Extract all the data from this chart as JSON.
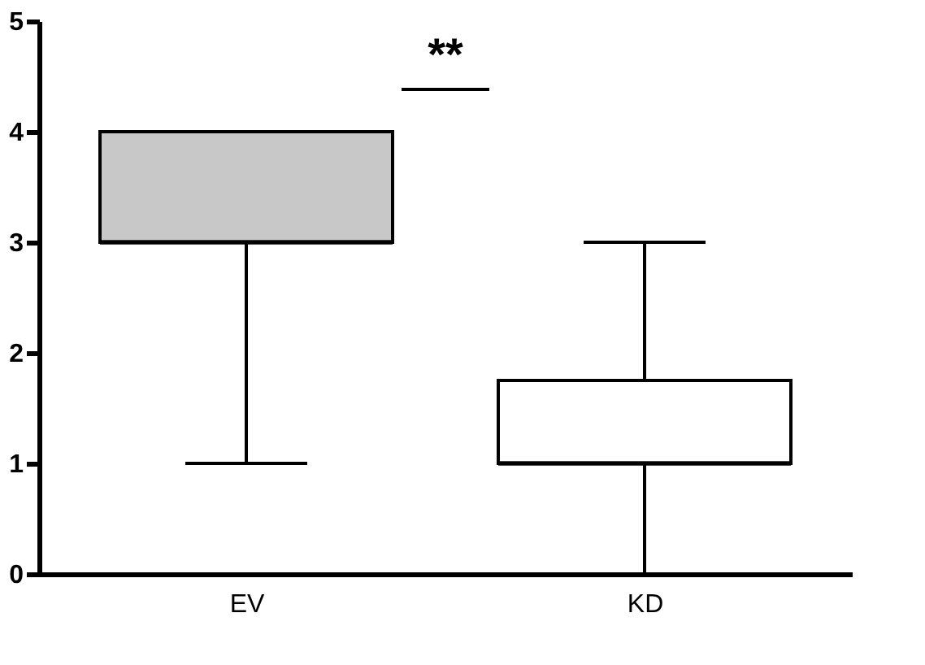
{
  "chart_data": {
    "type": "box",
    "categories": [
      "EV",
      "KD"
    ],
    "boxes": [
      {
        "low": 1,
        "q1": 3,
        "median": 3,
        "q3": 4,
        "high": 4
      },
      {
        "low": 0,
        "q1": 1,
        "median": 1,
        "q3": 1.75,
        "high": 3
      }
    ],
    "colors": [
      "#c8c8c8",
      "#ffffff"
    ],
    "ylim": [
      0,
      5
    ],
    "yticks": [
      0,
      1,
      2,
      3,
      4,
      5
    ],
    "annotations": [
      "**"
    ]
  }
}
